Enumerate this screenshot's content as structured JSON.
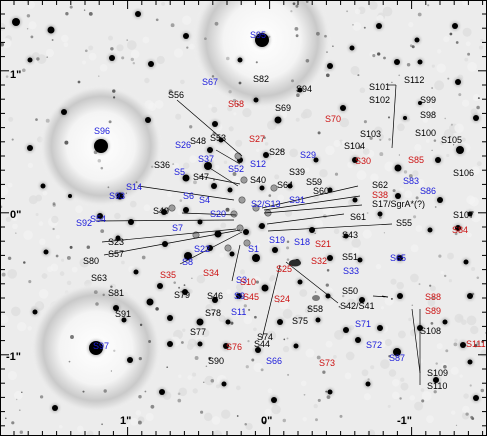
{
  "colors": {
    "black": "#000000",
    "blue": "#1a1adb",
    "red": "#cc1111"
  },
  "axis_labels": {
    "y_top": "1\"",
    "y_mid": "0\"",
    "y_bottom": "-1\"",
    "x_left": "1\"",
    "x_mid": "0\"",
    "x_right": "-1\""
  },
  "labels": [
    {
      "text": "S95",
      "color": "blue"
    },
    {
      "text": "S67",
      "color": "blue"
    },
    {
      "text": "S82",
      "color": "black"
    },
    {
      "text": "S94",
      "color": "black"
    },
    {
      "text": "S56",
      "color": "black"
    },
    {
      "text": "S68",
      "color": "red"
    },
    {
      "text": "S69",
      "color": "black"
    },
    {
      "text": "S70",
      "color": "red"
    },
    {
      "text": "S112",
      "color": "black"
    },
    {
      "text": "S101",
      "color": "black"
    },
    {
      "text": "S102",
      "color": "black"
    },
    {
      "text": "S99",
      "color": "black"
    },
    {
      "text": "S98",
      "color": "black"
    },
    {
      "text": "S96",
      "color": "blue"
    },
    {
      "text": "S48",
      "color": "black"
    },
    {
      "text": "S53",
      "color": "black"
    },
    {
      "text": "S27",
      "color": "red"
    },
    {
      "text": "S26",
      "color": "blue"
    },
    {
      "text": "S28",
      "color": "black"
    },
    {
      "text": "S29",
      "color": "blue"
    },
    {
      "text": "S103",
      "color": "black"
    },
    {
      "text": "S100",
      "color": "black"
    },
    {
      "text": "S105",
      "color": "black"
    },
    {
      "text": "S104",
      "color": "black"
    },
    {
      "text": "S37",
      "color": "blue"
    },
    {
      "text": "S12",
      "color": "blue"
    },
    {
      "text": "S30",
      "color": "red"
    },
    {
      "text": "S85",
      "color": "red"
    },
    {
      "text": "S36",
      "color": "black"
    },
    {
      "text": "S5",
      "color": "blue"
    },
    {
      "text": "S52",
      "color": "blue"
    },
    {
      "text": "S39",
      "color": "black"
    },
    {
      "text": "S47",
      "color": "black"
    },
    {
      "text": "S40",
      "color": "black"
    },
    {
      "text": "S64",
      "color": "black"
    },
    {
      "text": "S59",
      "color": "black"
    },
    {
      "text": "S60",
      "color": "black"
    },
    {
      "text": "S62",
      "color": "black"
    },
    {
      "text": "S83",
      "color": "blue"
    },
    {
      "text": "S86",
      "color": "blue"
    },
    {
      "text": "S106",
      "color": "black"
    },
    {
      "text": "S14",
      "color": "blue"
    },
    {
      "text": "S38",
      "color": "red"
    },
    {
      "text": "S93",
      "color": "blue"
    },
    {
      "text": "S6",
      "color": "blue"
    },
    {
      "text": "S4",
      "color": "blue"
    },
    {
      "text": "S2/S13",
      "color": "blue"
    },
    {
      "text": "S31",
      "color": "blue"
    },
    {
      "text": "S17/SgrA*(?)",
      "color": "black"
    },
    {
      "text": "S49",
      "color": "black"
    },
    {
      "text": "S20",
      "color": "blue"
    },
    {
      "text": "S54",
      "color": "blue"
    },
    {
      "text": "S61",
      "color": "black"
    },
    {
      "text": "S107",
      "color": "black"
    },
    {
      "text": "S92",
      "color": "blue"
    },
    {
      "text": "S7",
      "color": "blue"
    },
    {
      "text": "S55",
      "color": "black"
    },
    {
      "text": "S84",
      "color": "red"
    },
    {
      "text": "S19",
      "color": "blue"
    },
    {
      "text": "S43",
      "color": "black"
    },
    {
      "text": "S23",
      "color": "black"
    },
    {
      "text": "S18",
      "color": "blue"
    },
    {
      "text": "S21",
      "color": "red"
    },
    {
      "text": "S57",
      "color": "black"
    },
    {
      "text": "S22",
      "color": "blue"
    },
    {
      "text": "S1",
      "color": "blue"
    },
    {
      "text": "S80",
      "color": "black"
    },
    {
      "text": "S8",
      "color": "blue"
    },
    {
      "text": "S51",
      "color": "black"
    },
    {
      "text": "S65",
      "color": "blue"
    },
    {
      "text": "S32",
      "color": "red"
    },
    {
      "text": "S34",
      "color": "red"
    },
    {
      "text": "S3",
      "color": "blue"
    },
    {
      "text": "S35",
      "color": "red"
    },
    {
      "text": "S25",
      "color": "red"
    },
    {
      "text": "S10",
      "color": "red"
    },
    {
      "text": "S63",
      "color": "black"
    },
    {
      "text": "S33",
      "color": "blue"
    },
    {
      "text": "S9",
      "color": "blue"
    },
    {
      "text": "S81",
      "color": "black"
    },
    {
      "text": "S79",
      "color": "black"
    },
    {
      "text": "S46",
      "color": "black"
    },
    {
      "text": "S45",
      "color": "red"
    },
    {
      "text": "S24",
      "color": "red"
    },
    {
      "text": "S50",
      "color": "black"
    },
    {
      "text": "S88",
      "color": "red"
    },
    {
      "text": "S42/S41",
      "color": "black"
    },
    {
      "text": "S89",
      "color": "red"
    },
    {
      "text": "S91",
      "color": "black"
    },
    {
      "text": "S78",
      "color": "black"
    },
    {
      "text": "S11",
      "color": "blue"
    },
    {
      "text": "S58",
      "color": "black"
    },
    {
      "text": "S75",
      "color": "black"
    },
    {
      "text": "S71",
      "color": "blue"
    },
    {
      "text": "S108",
      "color": "black"
    },
    {
      "text": "S77",
      "color": "black"
    },
    {
      "text": "S74",
      "color": "black"
    },
    {
      "text": "S44",
      "color": "black"
    },
    {
      "text": "S72",
      "color": "blue"
    },
    {
      "text": "S111",
      "color": "red"
    },
    {
      "text": "S97",
      "color": "blue"
    },
    {
      "text": "S76",
      "color": "red"
    },
    {
      "text": "S87",
      "color": "blue"
    },
    {
      "text": "S90",
      "color": "black"
    },
    {
      "text": "S66",
      "color": "blue"
    },
    {
      "text": "S73",
      "color": "red"
    },
    {
      "text": "S109",
      "color": "black"
    },
    {
      "text": "S110",
      "color": "black"
    }
  ]
}
